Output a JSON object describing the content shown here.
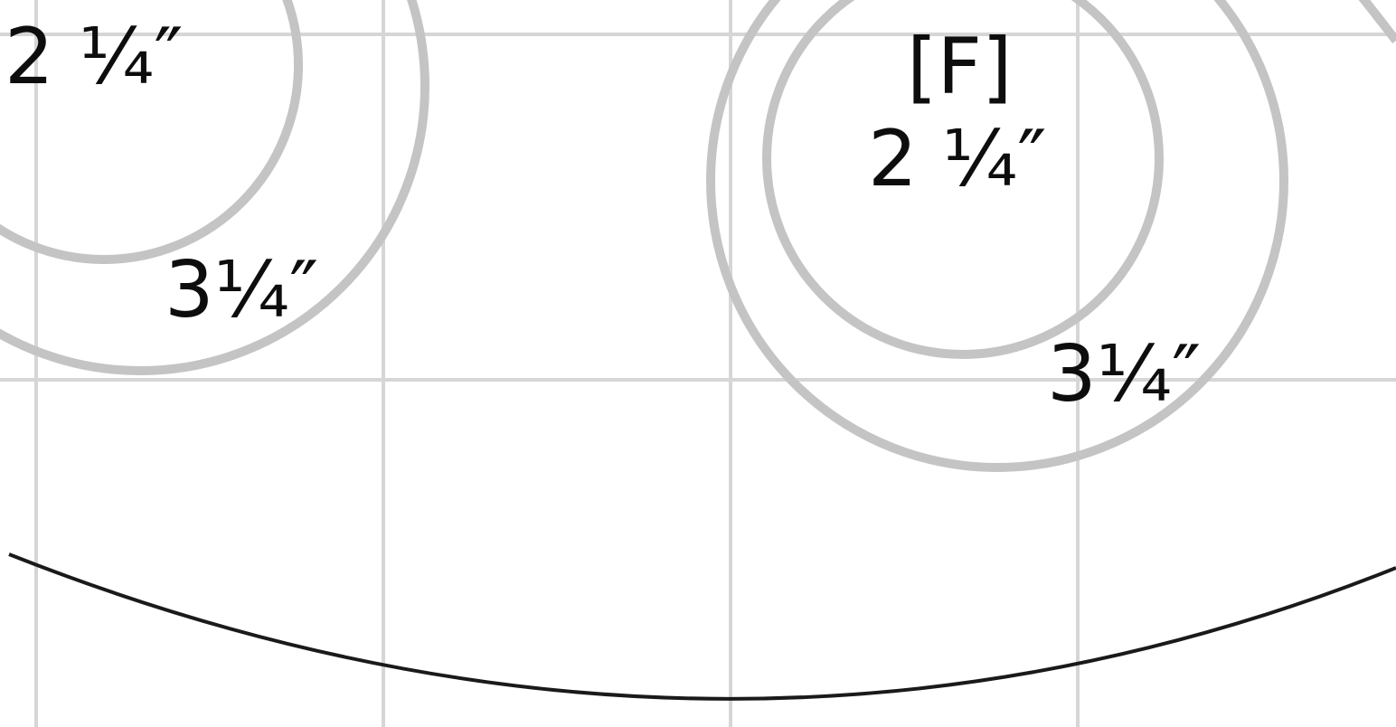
{
  "colors": {
    "grid": "#d6d6d6",
    "circle": "#c4c4c4",
    "curve": "#1a1a1a",
    "text": "#0d0d0d",
    "background": "#ffffff"
  },
  "labels": {
    "left_small": "2 ¼″",
    "left_large": "3¼″",
    "right_letter": "[F]",
    "right_small": "2 ¼″",
    "right_large": "3¼″"
  }
}
